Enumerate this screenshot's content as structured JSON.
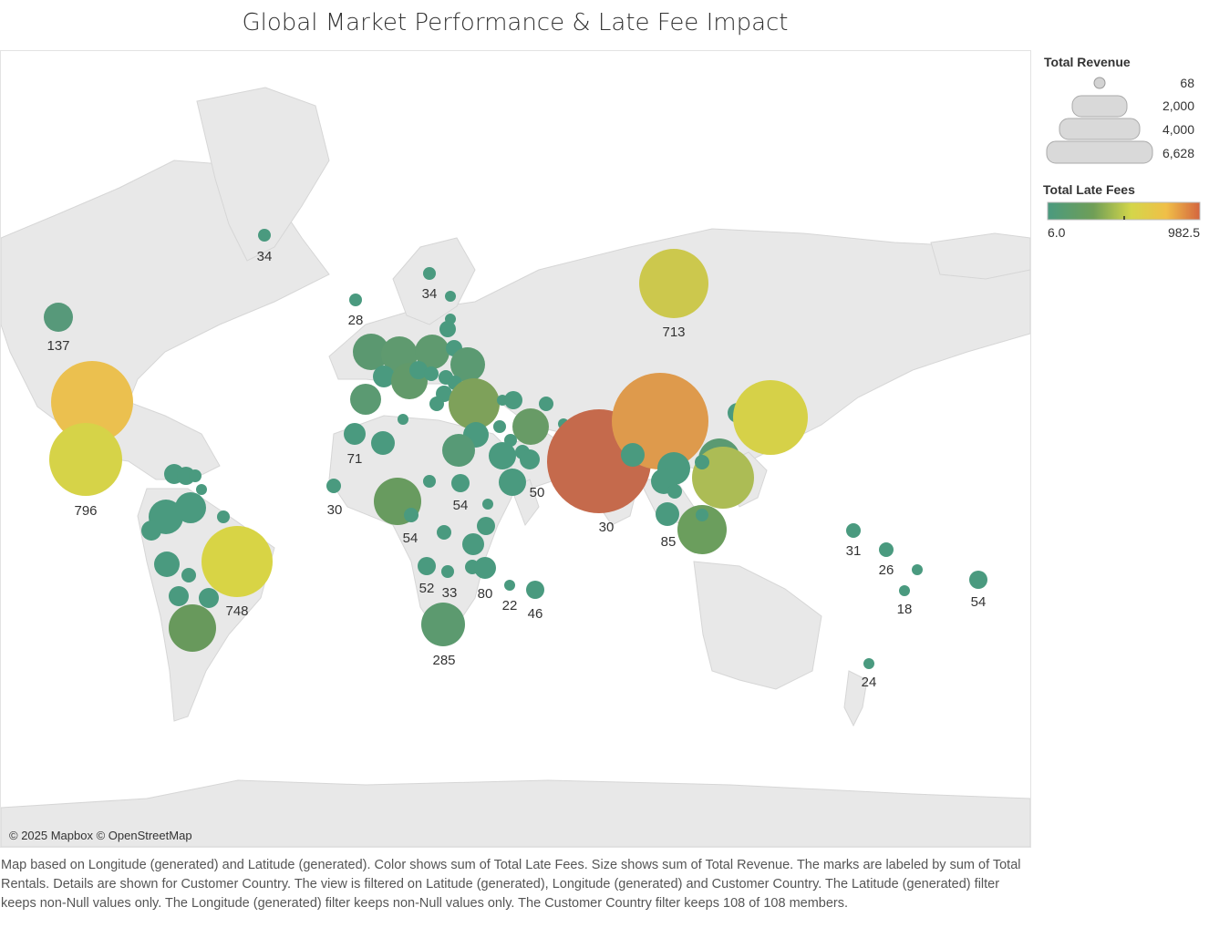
{
  "title": "Global Market Performance & Late Fee Impact",
  "attribution": "© 2025 Mapbox © OpenStreetMap",
  "legend": {
    "size_title": "Total Revenue",
    "size_values": [
      "68",
      "2,000",
      "4,000",
      "6,628"
    ],
    "color_title": "Total Late Fees",
    "color_min_label": "6.0",
    "color_max_label": "982.5",
    "color_stops": [
      "#4a9a7f",
      "#6f9e57",
      "#d4d64a",
      "#f0bf48",
      "#d4653f"
    ]
  },
  "footnote": "Map based on Longitude (generated) and Latitude (generated).  Color shows sum of Total Late Fees.  Size shows sum of Total Revenue.  The marks are labeled by sum of Total Rentals.  Details are shown for Customer Country. The view is filtered on Latitude (generated), Longitude (generated) and Customer Country. The Latitude (generated) filter keeps non-Null values only. The Longitude (generated) filter keeps non-Null values only. The Customer Country filter keeps 108 of 108 members.",
  "map_labels": [
    "34",
    "137",
    "28",
    "34",
    "713",
    "71",
    "796",
    "30",
    "54",
    "54",
    "50",
    "30",
    "85",
    "748",
    "52",
    "33",
    "80",
    "22",
    "46",
    "285",
    "31",
    "26",
    "18",
    "54",
    "24"
  ]
}
